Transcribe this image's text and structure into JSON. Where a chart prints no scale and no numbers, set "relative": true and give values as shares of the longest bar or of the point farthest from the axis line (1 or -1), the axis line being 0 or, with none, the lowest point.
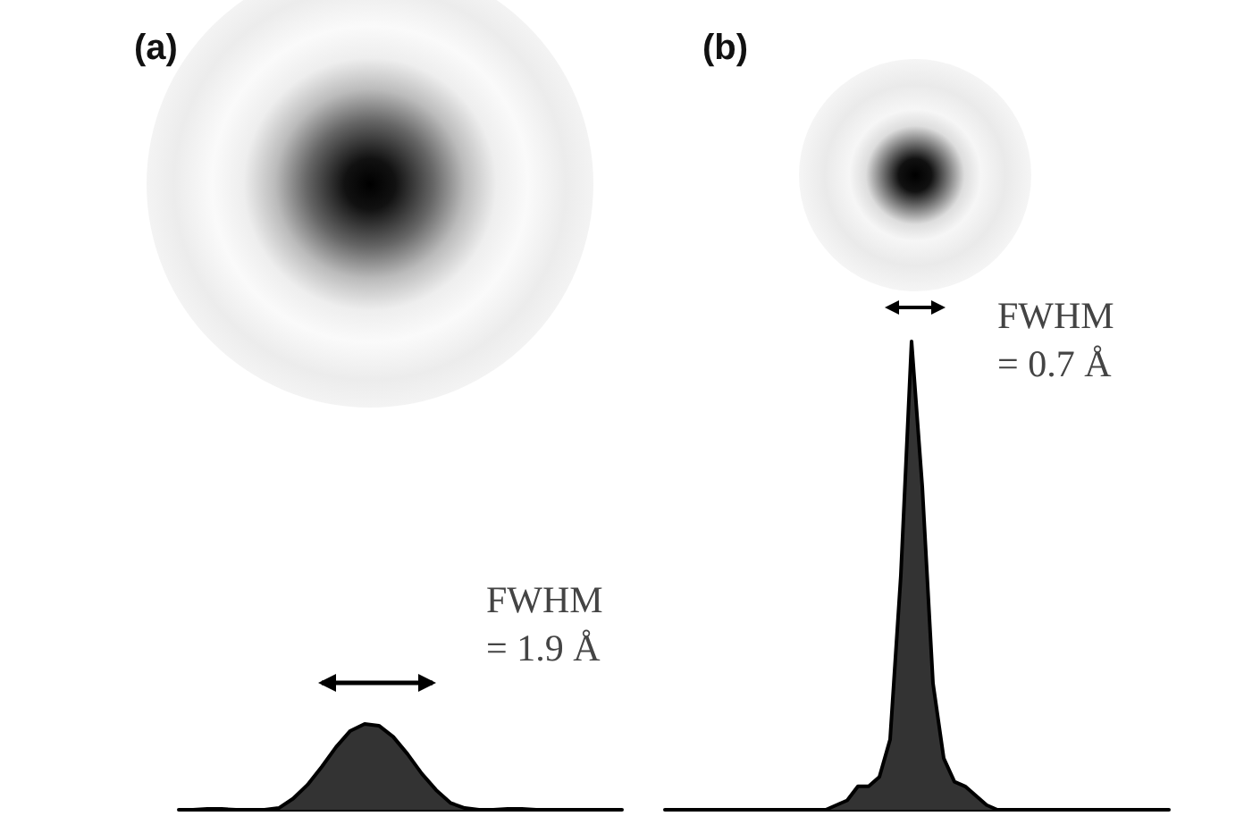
{
  "chart_data": [
    {
      "type": "area",
      "title": "(a)",
      "annotations": [
        "FWHM\n= 1.9 Å"
      ],
      "relative": true,
      "color": "#333333",
      "categories": [
        null,
        null,
        null,
        null,
        null,
        null,
        null,
        null,
        null,
        null,
        null,
        null,
        null,
        null,
        null,
        null,
        null,
        null,
        null,
        null,
        null,
        null,
        null,
        null,
        null,
        null,
        null,
        null,
        null,
        null,
        null,
        null
      ],
      "values": [
        0,
        0,
        0.01,
        0.01,
        0,
        0,
        0,
        0.02,
        0.13,
        0.29,
        0.5,
        0.73,
        0.92,
        1,
        0.98,
        0.85,
        0.65,
        0.42,
        0.23,
        0.08,
        0.02,
        0,
        0,
        0.01,
        0.01,
        0,
        0,
        0,
        0,
        0,
        0,
        0
      ]
    },
    {
      "type": "area",
      "title": "(b)",
      "annotations": [
        "FWHM\n= 0.7 Å"
      ],
      "relative": true,
      "color": "#333333",
      "categories": [
        null,
        null,
        null,
        null,
        null,
        null,
        null,
        null,
        null,
        null,
        null,
        null,
        null,
        null,
        null,
        null,
        null,
        null,
        null,
        null,
        null,
        null,
        null,
        null,
        null,
        null,
        null,
        null,
        null,
        null,
        null,
        null,
        null,
        null,
        null,
        null,
        null,
        null,
        null,
        null,
        null,
        null,
        null,
        null,
        null,
        null,
        null,
        null
      ],
      "values": [
        0,
        0,
        0,
        0,
        0,
        0,
        0,
        0,
        0,
        0,
        0,
        0,
        0,
        0,
        0,
        0,
        0.01,
        0.02,
        0.05,
        0.05,
        0.07,
        0.15,
        0.5,
        1,
        0.69,
        0.27,
        0.11,
        0.06,
        0.05,
        0.03,
        0.01,
        0,
        0,
        0,
        0,
        0,
        0,
        0,
        0,
        0,
        0,
        0,
        0,
        0,
        0,
        0,
        0,
        0
      ]
    }
  ]
}
